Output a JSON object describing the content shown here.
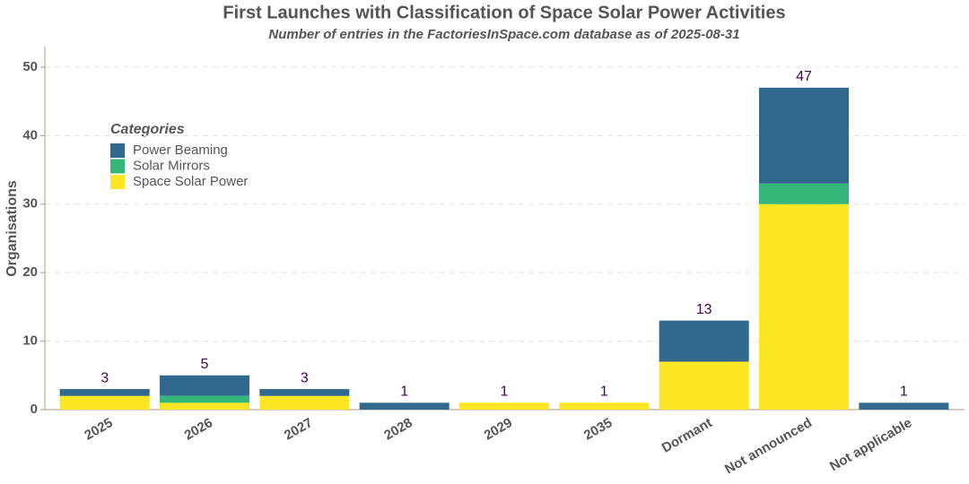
{
  "chart_data": {
    "type": "stacked-bar",
    "title": "First Launches with Classification of Space Solar Power Activities",
    "subtitle": "Number of entries in the FactoriesInSpace.com database as of 2025-08-31",
    "y_label": "Organisations",
    "legend_title": "Categories",
    "categories": [
      "2025",
      "2026",
      "2027",
      "2028",
      "2029",
      "2035",
      "Dormant",
      "Not announced",
      "Not applicable"
    ],
    "series": [
      {
        "name": "Power Beaming",
        "color": "#31688e",
        "values": [
          1,
          3,
          1,
          1,
          0,
          0,
          6,
          14,
          1
        ]
      },
      {
        "name": "Solar Mirrors",
        "color": "#35b779",
        "values": [
          0,
          1,
          0,
          0,
          0,
          0,
          0,
          3,
          0
        ]
      },
      {
        "name": "Space Solar Power",
        "color": "#fde725",
        "values": [
          2,
          1,
          2,
          0,
          1,
          1,
          7,
          30,
          0
        ]
      }
    ],
    "totals": [
      3,
      5,
      3,
      1,
      1,
      1,
      13,
      47,
      1
    ],
    "ylim": [
      0,
      53
    ],
    "yticks": [
      0,
      10,
      20,
      30,
      40,
      50
    ],
    "grid": true
  }
}
